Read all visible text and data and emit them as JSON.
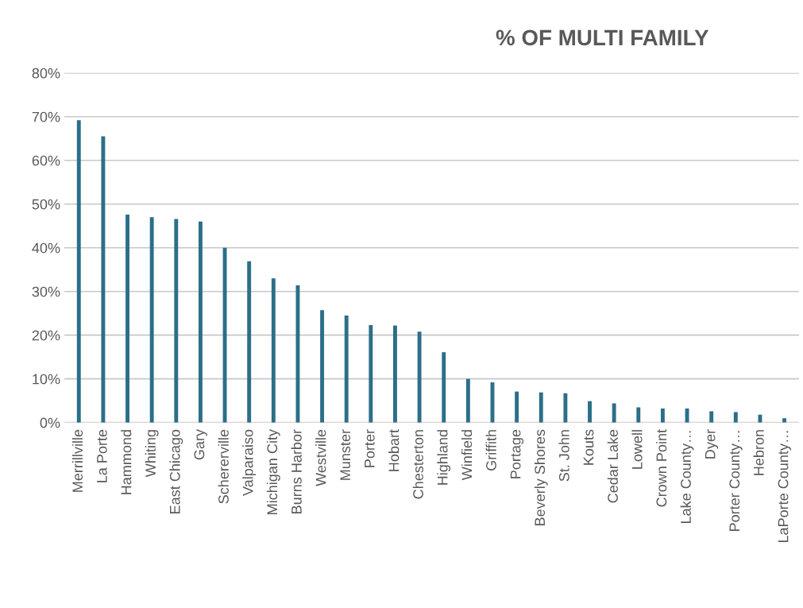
{
  "chart_data": {
    "type": "bar",
    "title": "% OF MULTI FAMILY",
    "categories": [
      "Merrillville",
      "La Porte",
      "Hammond",
      "Whiting",
      "East Chicago",
      "Gary",
      "Schererville",
      "Valparaiso",
      "Michigan City",
      "Burns Harbor",
      "Westville",
      "Munster",
      "Porter",
      "Hobart",
      "Chesterton",
      "Highland",
      "Winfield",
      "Griffith",
      "Portage",
      "Beverly Shores",
      "St. John",
      "Kouts",
      "Cedar Lake",
      "Lowell",
      "Crown Point",
      "Lake County…",
      "Dyer",
      "Porter County…",
      "Hebron",
      "LaPorte County…"
    ],
    "values": [
      69.2,
      65.5,
      47.6,
      47.0,
      46.6,
      46.0,
      40.0,
      36.9,
      33.0,
      31.4,
      25.7,
      24.5,
      22.3,
      22.2,
      20.8,
      16.1,
      10.0,
      9.2,
      7.1,
      6.9,
      6.7,
      4.9,
      4.4,
      3.5,
      3.2,
      3.2,
      2.6,
      2.4,
      1.8,
      1.0
    ],
    "color": "#2b6f89",
    "ylim": [
      0,
      80
    ],
    "yticks": [
      {
        "value": 0,
        "label": "0%"
      },
      {
        "value": 10,
        "label": "10%"
      },
      {
        "value": 20,
        "label": "20%"
      },
      {
        "value": 30,
        "label": "30%"
      },
      {
        "value": 40,
        "label": "40%"
      },
      {
        "value": 50,
        "label": "50%"
      },
      {
        "value": 60,
        "label": "60%"
      },
      {
        "value": 70,
        "label": "70%"
      },
      {
        "value": 80,
        "label": "80%"
      }
    ],
    "grid": "y",
    "legend": false
  }
}
